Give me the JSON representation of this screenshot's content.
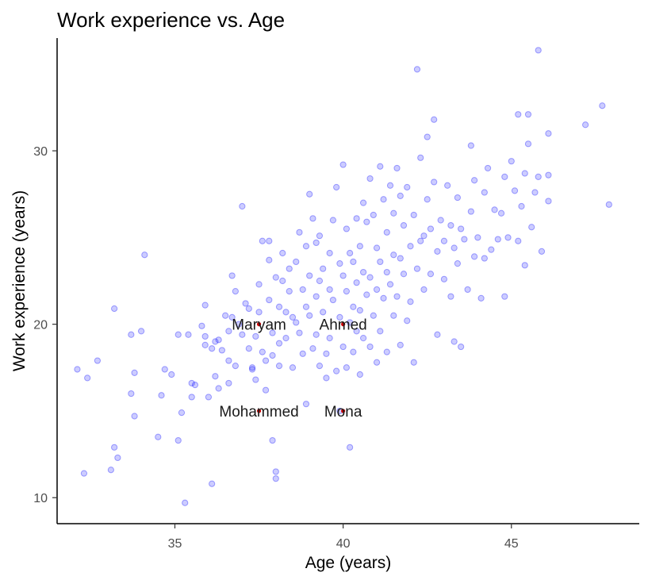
{
  "chart_data": {
    "type": "scatter",
    "title": "Work experience vs. Age",
    "xlabel": "Age (years)",
    "ylabel": "Work experience (years)",
    "xlim": [
      31.5,
      48.8
    ],
    "ylim": [
      8.5,
      36.5
    ],
    "xticks": [
      35,
      40,
      45
    ],
    "yticks": [
      10,
      20,
      30
    ],
    "grid": false,
    "legend": "none",
    "colors": {
      "points": "#0000ff",
      "highlight": "#cc0000"
    },
    "series": [
      {
        "points": [
          [
            32.1,
            17.4
          ],
          [
            32.4,
            16.9
          ],
          [
            32.3,
            11.4
          ],
          [
            32.7,
            17.9
          ],
          [
            33.1,
            11.6
          ],
          [
            33.2,
            12.9
          ],
          [
            33.3,
            12.3
          ],
          [
            33.2,
            20.9
          ],
          [
            33.7,
            19.4
          ],
          [
            33.7,
            16.0
          ],
          [
            33.8,
            17.2
          ],
          [
            33.8,
            14.7
          ],
          [
            34.0,
            19.6
          ],
          [
            34.1,
            24.0
          ],
          [
            34.5,
            13.5
          ],
          [
            34.6,
            15.9
          ],
          [
            34.7,
            17.4
          ],
          [
            34.9,
            17.1
          ],
          [
            35.1,
            19.4
          ],
          [
            35.1,
            13.3
          ],
          [
            35.2,
            14.9
          ],
          [
            35.3,
            9.7
          ],
          [
            35.4,
            19.4
          ],
          [
            35.5,
            16.6
          ],
          [
            35.5,
            15.8
          ],
          [
            35.6,
            16.5
          ],
          [
            35.8,
            19.9
          ],
          [
            35.9,
            21.1
          ],
          [
            35.9,
            19.3
          ],
          [
            35.9,
            18.8
          ],
          [
            36.0,
            15.8
          ],
          [
            36.1,
            10.8
          ],
          [
            36.1,
            18.6
          ],
          [
            36.2,
            17.0
          ],
          [
            36.2,
            19.0
          ],
          [
            36.3,
            16.3
          ],
          [
            36.3,
            19.1
          ],
          [
            36.4,
            18.5
          ],
          [
            36.5,
            20.5
          ],
          [
            36.6,
            16.6
          ],
          [
            36.6,
            17.9
          ],
          [
            36.6,
            19.6
          ],
          [
            36.7,
            20.4
          ],
          [
            36.7,
            22.8
          ],
          [
            36.8,
            21.9
          ],
          [
            36.8,
            17.6
          ],
          [
            36.9,
            20.0
          ],
          [
            37.0,
            26.8
          ],
          [
            37.0,
            19.4
          ],
          [
            37.1,
            21.2
          ],
          [
            37.2,
            20.9
          ],
          [
            37.2,
            18.6
          ],
          [
            37.3,
            17.5
          ],
          [
            37.3,
            17.4
          ],
          [
            37.4,
            19.3
          ],
          [
            37.4,
            16.8
          ],
          [
            37.5,
            22.3
          ],
          [
            37.5,
            20.7
          ],
          [
            37.6,
            24.8
          ],
          [
            37.6,
            18.4
          ],
          [
            37.7,
            17.9
          ],
          [
            37.7,
            16.2
          ],
          [
            37.8,
            23.7
          ],
          [
            37.8,
            21.4
          ],
          [
            37.8,
            24.8
          ],
          [
            37.9,
            19.5
          ],
          [
            37.9,
            18.2
          ],
          [
            37.9,
            13.3
          ],
          [
            38.0,
            11.1
          ],
          [
            38.0,
            11.5
          ],
          [
            38.0,
            22.7
          ],
          [
            38.1,
            21.0
          ],
          [
            38.1,
            17.6
          ],
          [
            38.1,
            18.9
          ],
          [
            38.2,
            24.1
          ],
          [
            38.2,
            22.5
          ],
          [
            38.3,
            20.7
          ],
          [
            38.3,
            19.2
          ],
          [
            38.4,
            23.2
          ],
          [
            38.4,
            21.9
          ],
          [
            38.5,
            20.4
          ],
          [
            38.5,
            17.5
          ],
          [
            38.6,
            20.1
          ],
          [
            38.6,
            23.6
          ],
          [
            38.7,
            25.3
          ],
          [
            38.7,
            19.5
          ],
          [
            38.8,
            22.0
          ],
          [
            38.8,
            18.3
          ],
          [
            38.9,
            15.4
          ],
          [
            38.9,
            21.0
          ],
          [
            38.9,
            24.5
          ],
          [
            39.0,
            27.5
          ],
          [
            39.0,
            22.8
          ],
          [
            39.0,
            20.5
          ],
          [
            39.1,
            18.6
          ],
          [
            39.1,
            26.1
          ],
          [
            39.2,
            24.7
          ],
          [
            39.2,
            21.6
          ],
          [
            39.2,
            19.4
          ],
          [
            39.3,
            22.5
          ],
          [
            39.3,
            25.1
          ],
          [
            39.3,
            17.6
          ],
          [
            39.4,
            23.2
          ],
          [
            39.4,
            20.7
          ],
          [
            39.5,
            18.3
          ],
          [
            39.5,
            16.9
          ],
          [
            39.6,
            24.1
          ],
          [
            39.6,
            22.0
          ],
          [
            39.6,
            19.2
          ],
          [
            39.7,
            26.0
          ],
          [
            39.7,
            21.4
          ],
          [
            39.8,
            17.3
          ],
          [
            39.8,
            27.9
          ],
          [
            39.9,
            23.5
          ],
          [
            39.9,
            20.4
          ],
          [
            39.9,
            15.0
          ],
          [
            40.0,
            29.2
          ],
          [
            40.0,
            22.8
          ],
          [
            40.0,
            18.7
          ],
          [
            40.1,
            25.5
          ],
          [
            40.1,
            21.9
          ],
          [
            40.1,
            17.5
          ],
          [
            40.2,
            24.1
          ],
          [
            40.2,
            20.1
          ],
          [
            40.2,
            12.9
          ],
          [
            40.3,
            23.6
          ],
          [
            40.3,
            21.0
          ],
          [
            40.3,
            18.4
          ],
          [
            40.4,
            26.1
          ],
          [
            40.4,
            22.4
          ],
          [
            40.4,
            19.6
          ],
          [
            40.5,
            24.5
          ],
          [
            40.5,
            20.8
          ],
          [
            40.5,
            17.1
          ],
          [
            40.6,
            27.0
          ],
          [
            40.6,
            23.0
          ],
          [
            40.6,
            19.2
          ],
          [
            40.7,
            25.9
          ],
          [
            40.7,
            21.7
          ],
          [
            40.8,
            28.4
          ],
          [
            40.8,
            22.7
          ],
          [
            40.8,
            18.7
          ],
          [
            40.9,
            26.3
          ],
          [
            40.9,
            20.5
          ],
          [
            41.0,
            24.4
          ],
          [
            41.0,
            22.0
          ],
          [
            41.0,
            17.8
          ],
          [
            41.1,
            29.1
          ],
          [
            41.1,
            23.6
          ],
          [
            41.1,
            19.6
          ],
          [
            41.2,
            27.2
          ],
          [
            41.2,
            21.5
          ],
          [
            41.3,
            25.3
          ],
          [
            41.3,
            23.0
          ],
          [
            41.3,
            18.4
          ],
          [
            41.4,
            28.0
          ],
          [
            41.4,
            22.3
          ],
          [
            41.5,
            26.4
          ],
          [
            41.5,
            20.5
          ],
          [
            41.5,
            24.0
          ],
          [
            41.6,
            29.0
          ],
          [
            41.6,
            21.6
          ],
          [
            41.7,
            27.4
          ],
          [
            41.7,
            23.8
          ],
          [
            41.7,
            18.8
          ],
          [
            41.8,
            25.7
          ],
          [
            41.8,
            22.9
          ],
          [
            41.9,
            27.9
          ],
          [
            41.9,
            20.2
          ],
          [
            42.0,
            24.5
          ],
          [
            42.0,
            21.3
          ],
          [
            42.1,
            26.3
          ],
          [
            42.1,
            17.8
          ],
          [
            42.2,
            34.7
          ],
          [
            42.2,
            23.2
          ],
          [
            42.3,
            29.6
          ],
          [
            42.3,
            24.8
          ],
          [
            42.4,
            22.0
          ],
          [
            42.4,
            25.1
          ],
          [
            42.5,
            30.8
          ],
          [
            42.5,
            27.2
          ],
          [
            42.6,
            22.9
          ],
          [
            42.6,
            25.5
          ],
          [
            42.7,
            31.8
          ],
          [
            42.7,
            28.2
          ],
          [
            42.8,
            24.2
          ],
          [
            42.8,
            19.4
          ],
          [
            42.9,
            26.0
          ],
          [
            43.0,
            24.8
          ],
          [
            43.0,
            22.6
          ],
          [
            43.1,
            28.0
          ],
          [
            43.2,
            25.7
          ],
          [
            43.2,
            21.6
          ],
          [
            43.3,
            24.4
          ],
          [
            43.3,
            19.0
          ],
          [
            43.4,
            23.5
          ],
          [
            43.4,
            27.3
          ],
          [
            43.5,
            25.5
          ],
          [
            43.5,
            18.7
          ],
          [
            43.6,
            24.9
          ],
          [
            43.7,
            22.0
          ],
          [
            43.8,
            30.3
          ],
          [
            43.8,
            26.5
          ],
          [
            43.9,
            28.3
          ],
          [
            43.9,
            23.9
          ],
          [
            44.0,
            25.0
          ],
          [
            44.1,
            21.5
          ],
          [
            44.2,
            27.6
          ],
          [
            44.2,
            23.8
          ],
          [
            44.3,
            29.0
          ],
          [
            44.4,
            24.3
          ],
          [
            44.5,
            26.6
          ],
          [
            44.6,
            24.9
          ],
          [
            44.7,
            26.4
          ],
          [
            44.8,
            28.5
          ],
          [
            44.8,
            21.6
          ],
          [
            44.9,
            25.0
          ],
          [
            45.0,
            29.4
          ],
          [
            45.1,
            27.7
          ],
          [
            45.2,
            32.1
          ],
          [
            45.2,
            24.8
          ],
          [
            45.3,
            26.8
          ],
          [
            45.4,
            28.7
          ],
          [
            45.4,
            23.4
          ],
          [
            45.5,
            32.1
          ],
          [
            45.5,
            30.4
          ],
          [
            45.6,
            25.6
          ],
          [
            45.7,
            27.6
          ],
          [
            45.8,
            35.8
          ],
          [
            45.8,
            28.5
          ],
          [
            45.9,
            24.2
          ],
          [
            46.1,
            31.0
          ],
          [
            46.1,
            28.6
          ],
          [
            46.1,
            27.1
          ],
          [
            47.2,
            31.5
          ],
          [
            47.7,
            32.6
          ],
          [
            47.9,
            26.9
          ]
        ]
      },
      {
        "points": [
          [
            37.5,
            20.0
          ],
          [
            40.0,
            20.0
          ],
          [
            37.5,
            15.0
          ],
          [
            40.0,
            15.0
          ]
        ],
        "labels": [
          "Maryam",
          "Ahmed",
          "Mohammed",
          "Mona"
        ]
      }
    ]
  }
}
